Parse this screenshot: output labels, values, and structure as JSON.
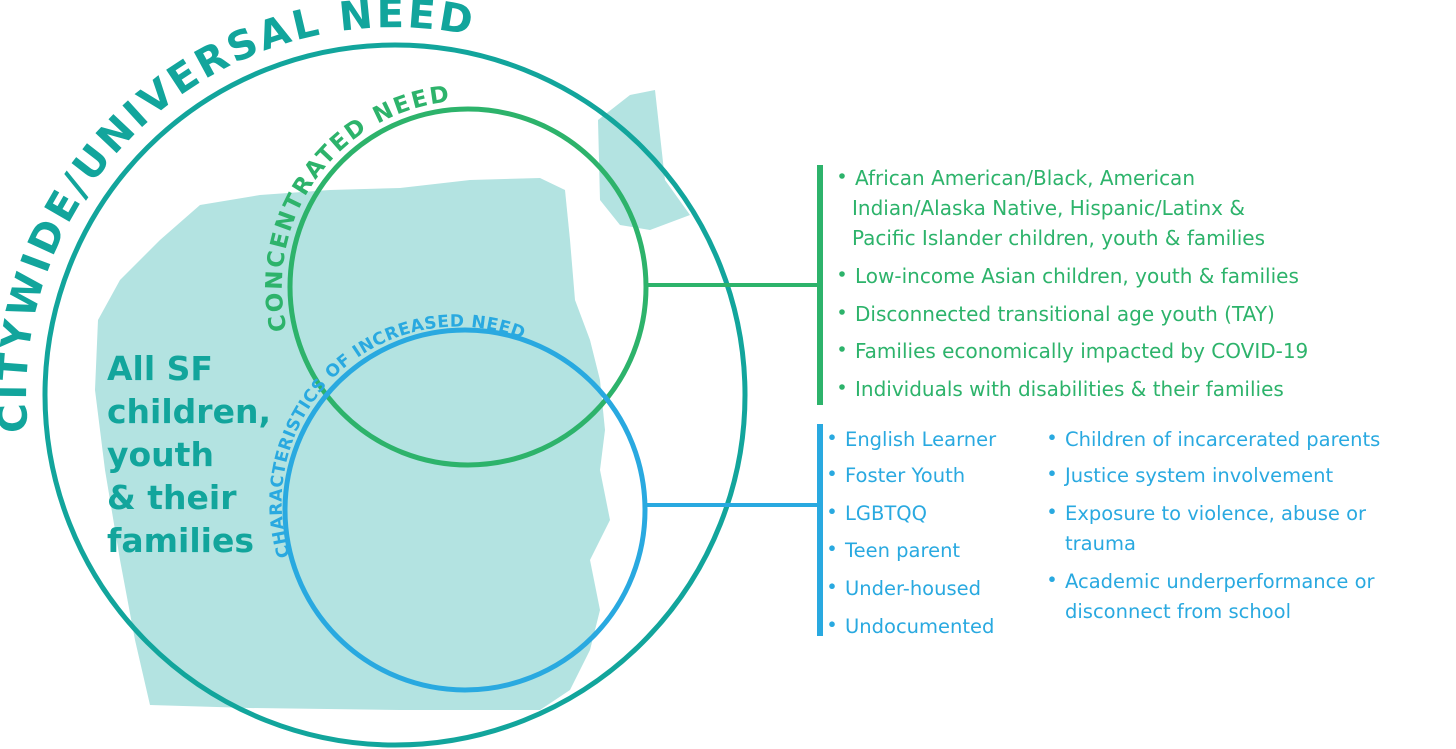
{
  "diagram": {
    "universal_label": "CITYWIDE/UNIVERSAL NEED",
    "concentrated_label": "CONCENTRATED NEED",
    "increased_label": "CHARACTERISTICS OF INCREASED NEED",
    "center_label": [
      "All SF",
      "children,",
      "youth",
      "& their",
      "families"
    ],
    "concentrated_items": [
      [
        "African American/Black, American",
        "Indian/Alaska Native, Hispanic/Latinx &",
        "Pacific Islander children, youth & families"
      ],
      [
        "Low-income Asian children, youth & families"
      ],
      [
        "Disconnected transitional age youth (TAY)"
      ],
      [
        "Families economically impacted by COVID-19"
      ],
      [
        "Individuals with disabilities & their families"
      ]
    ],
    "increased_items_left": [
      [
        "English Learner"
      ],
      [
        "Foster Youth"
      ],
      [
        "LGBTQQ"
      ],
      [
        "Teen parent"
      ],
      [
        "Under-housed"
      ],
      [
        "Undocumented"
      ]
    ],
    "increased_items_right": [
      [
        "Children of incarcerated parents"
      ],
      [
        "Justice system involvement"
      ],
      [
        "Exposure to violence, abuse or",
        "trauma"
      ],
      [
        "Academic underperformance or",
        "disconnect from school"
      ]
    ]
  }
}
